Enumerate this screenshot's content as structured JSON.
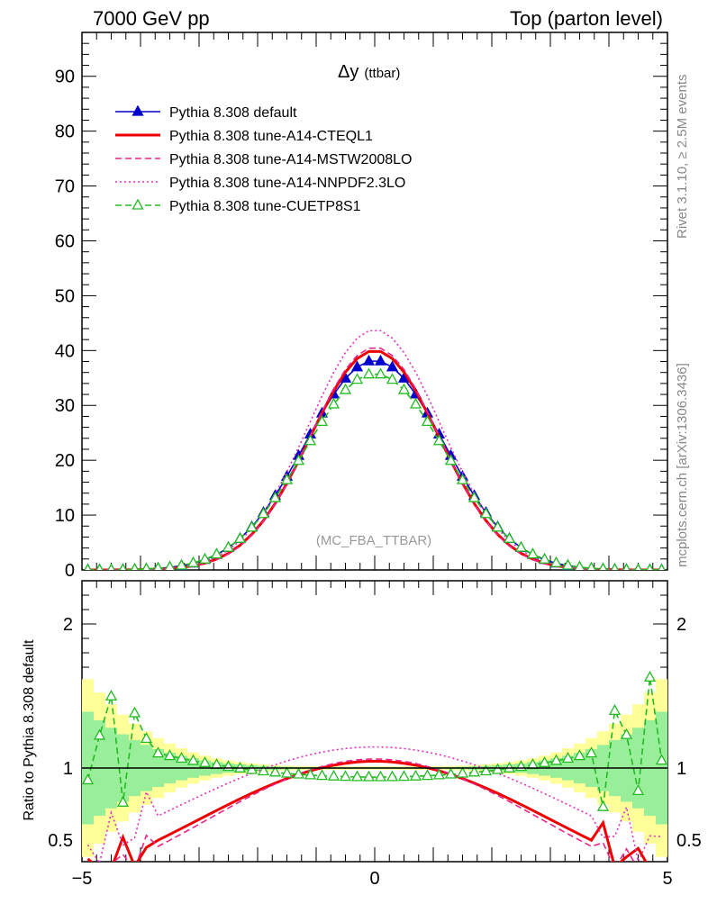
{
  "header": {
    "left": "7000 GeV pp",
    "right": "Top (parton level)"
  },
  "side_labels": {
    "rivet": "Rivet 3.1.10, ≥ 2.5M events",
    "mcplots": "mcplots.cern.ch [arXiv:1306.3436]"
  },
  "chart_data": {
    "type": "line",
    "title": "Δy",
    "title_suffix": "(ttbar)",
    "watermark": "(MC_FBA_TTBAR)",
    "xlim": [
      -5,
      5
    ],
    "ylim": [
      0,
      98
    ],
    "x_ticks": [
      -5,
      0,
      5
    ],
    "y_ticks": [
      0,
      10,
      20,
      30,
      40,
      50,
      60,
      70,
      80,
      90
    ],
    "legend_position": "top-left",
    "ratio_panel": {
      "ylabel": "Ratio to Pythia 8.308 default",
      "ylim": [
        0.35,
        2.3
      ],
      "y_ticks": [
        0.5,
        1,
        2
      ],
      "reference": 1
    },
    "series": [
      {
        "name": "Pythia 8.308 default",
        "color": "#0000cc",
        "style": "solid",
        "marker": "triangle-filled",
        "peak": 38.2,
        "sigma": 1.18
      },
      {
        "name": "Pythia 8.308 tune-A14-CTEQL1",
        "color": "#ee0000",
        "style": "solid-thick",
        "marker": "none",
        "peak": 40.0,
        "sigma": 1.1
      },
      {
        "name": "Pythia 8.308 tune-A14-MSTW2008LO",
        "color": "#e8258c",
        "style": "dashed",
        "marker": "none",
        "peak": 40.6,
        "sigma": 1.09
      },
      {
        "name": "Pythia 8.308 tune-A14-NNPDF2.3LO",
        "color": "#e030c0",
        "style": "dotted",
        "marker": "none",
        "peak": 43.8,
        "sigma": 1.12
      },
      {
        "name": "Pythia 8.308 tune-CUETP8S1",
        "color": "#22bb22",
        "style": "dashed",
        "marker": "triangle-open",
        "peak": 35.8,
        "sigma": 1.2
      }
    ]
  }
}
